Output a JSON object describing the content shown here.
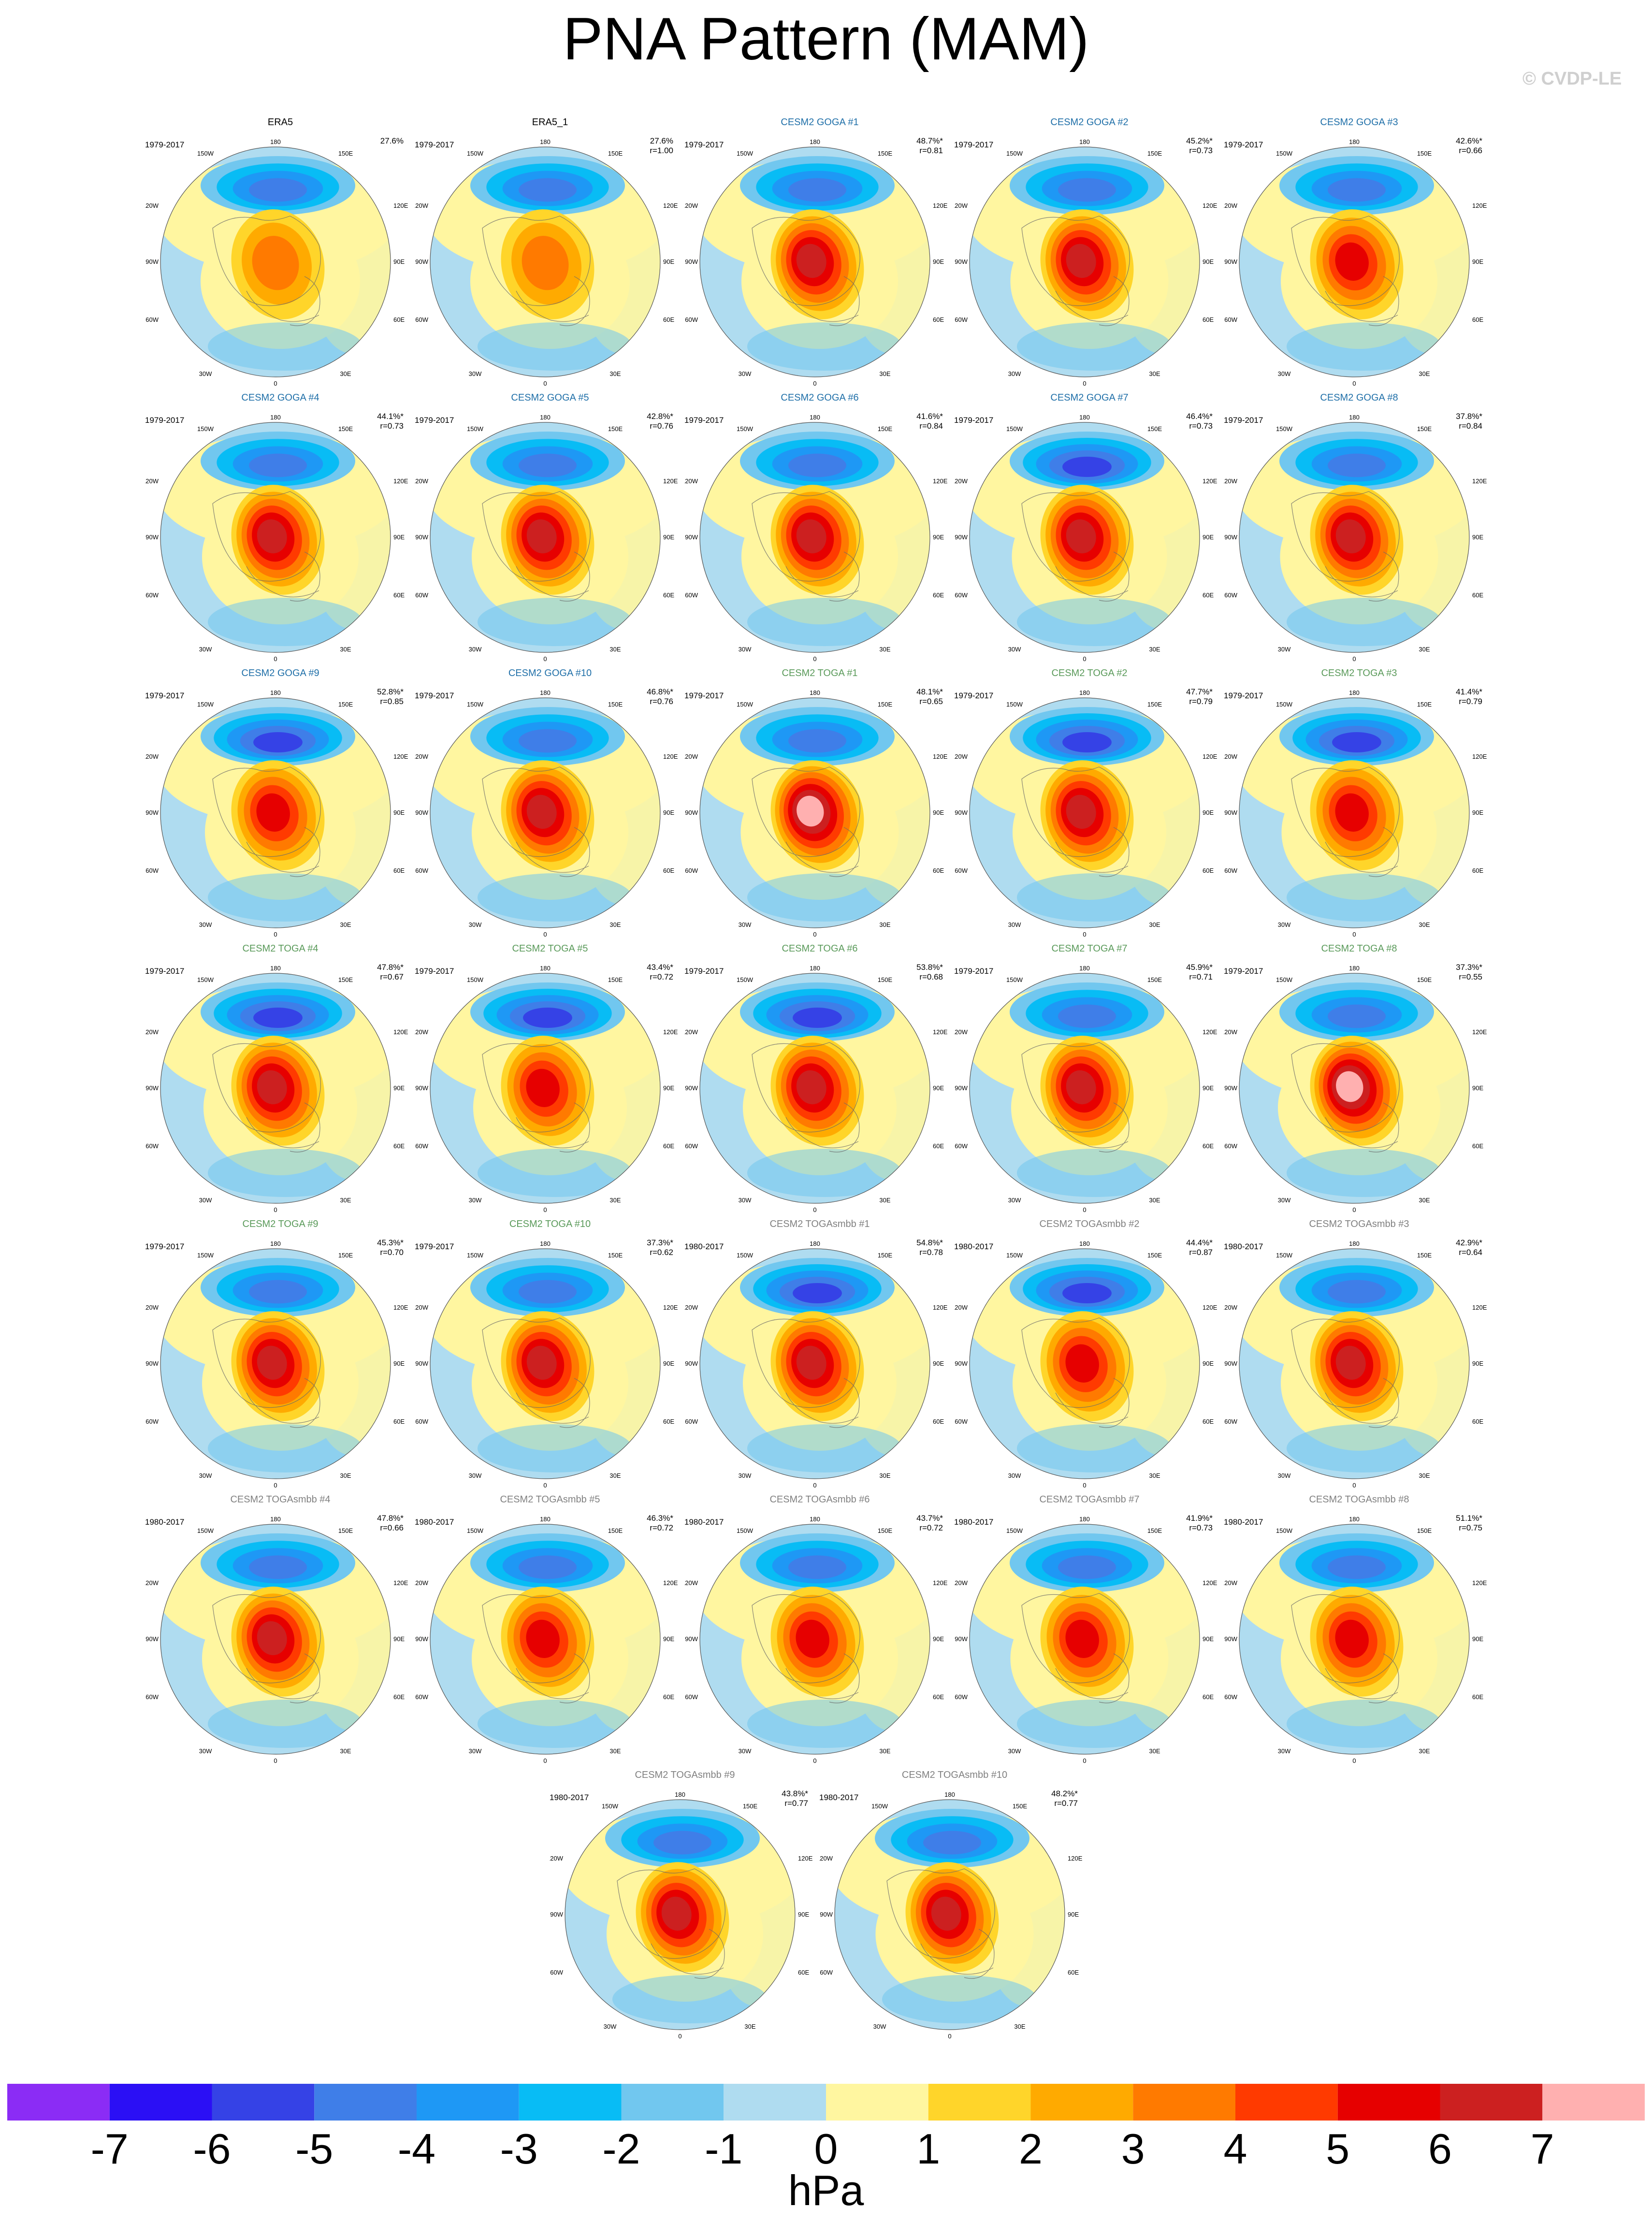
{
  "title": "PNA Pattern (MAM)",
  "credit": "© CVDP-LE",
  "map_labels": {
    "top": "180",
    "left_upper": "150W",
    "right_upper": "150E",
    "left_mid": "120W",
    "right_mid": "120E",
    "left": "90W",
    "right": "90E",
    "left_lower": "60W",
    "right_lower": "60E",
    "bottom_left": "30W",
    "bottom_right": "30E",
    "bottom": "0"
  },
  "panels": [
    {
      "title": "ERA5",
      "color": "#000000",
      "years": "1979-2017",
      "pct": "27.6%",
      "r": "",
      "int": 0.1,
      "neg": 0.5,
      "pos": 0.25
    },
    {
      "title": "ERA5_1",
      "color": "#000000",
      "years": "1979-2017",
      "pct": "27.6%",
      "r": "r=1.00",
      "int": 0.1,
      "neg": 0.5,
      "pos": 0.25
    },
    {
      "title": "CESM2 GOGA #1",
      "color": "#1f6fa8",
      "years": "1979-2017",
      "pct": "48.7%*",
      "r": "r=0.81",
      "int": 0.55,
      "neg": 0.6,
      "pos": 0.8
    },
    {
      "title": "CESM2 GOGA #2",
      "color": "#1f6fa8",
      "years": "1979-2017",
      "pct": "45.2%*",
      "r": "r=0.73",
      "int": 0.5,
      "neg": 0.55,
      "pos": 0.8
    },
    {
      "title": "CESM2 GOGA #3",
      "color": "#1f6fa8",
      "years": "1979-2017",
      "pct": "42.6%*",
      "r": "r=0.66",
      "int": 0.45,
      "neg": 0.6,
      "pos": 0.7
    },
    {
      "title": "CESM2 GOGA #4",
      "color": "#1f6fa8",
      "years": "1979-2017",
      "pct": "44.1%*",
      "r": "r=0.73",
      "int": 0.62,
      "neg": 0.6,
      "pos": 0.9
    },
    {
      "title": "CESM2 GOGA #5",
      "color": "#1f6fa8",
      "years": "1979-2017",
      "pct": "42.8%*",
      "r": "r=0.76",
      "int": 0.55,
      "neg": 0.6,
      "pos": 0.85
    },
    {
      "title": "CESM2 GOGA #6",
      "color": "#1f6fa8",
      "years": "1979-2017",
      "pct": "41.6%*",
      "r": "r=0.84",
      "int": 0.5,
      "neg": 0.6,
      "pos": 0.8
    },
    {
      "title": "CESM2 GOGA #7",
      "color": "#1f6fa8",
      "years": "1979-2017",
      "pct": "46.4%*",
      "r": "r=0.73",
      "int": 0.52,
      "neg": 0.65,
      "pos": 0.8
    },
    {
      "title": "CESM2 GOGA #8",
      "color": "#1f6fa8",
      "years": "1979-2017",
      "pct": "37.8%*",
      "r": "r=0.84",
      "int": 0.48,
      "neg": 0.55,
      "pos": 0.75
    },
    {
      "title": "CESM2 GOGA #9",
      "color": "#1f6fa8",
      "years": "1979-2017",
      "pct": "52.8%*",
      "r": "r=0.85",
      "int": 0.55,
      "neg": 0.8,
      "pos": 0.7
    },
    {
      "title": "CESM2 GOGA #10",
      "color": "#1f6fa8",
      "years": "1979-2017",
      "pct": "46.8%*",
      "r": "r=0.76",
      "int": 0.52,
      "neg": 0.6,
      "pos": 0.75
    },
    {
      "title": "CESM2 TOGA #1",
      "color": "#5a9a5a",
      "years": "1979-2017",
      "pct": "48.1%*",
      "r": "r=0.65",
      "int": 0.75,
      "neg": 0.55,
      "pos": 1.0
    },
    {
      "title": "CESM2 TOGA #2",
      "color": "#5a9a5a",
      "years": "1979-2017",
      "pct": "47.7%*",
      "r": "r=0.79",
      "int": 0.52,
      "neg": 0.7,
      "pos": 0.75
    },
    {
      "title": "CESM2 TOGA #3",
      "color": "#5a9a5a",
      "years": "1979-2017",
      "pct": "41.4%*",
      "r": "r=0.79",
      "int": 0.45,
      "neg": 0.65,
      "pos": 0.7
    },
    {
      "title": "CESM2 TOGA #4",
      "color": "#5a9a5a",
      "years": "1979-2017",
      "pct": "47.8%*",
      "r": "r=0.67",
      "int": 0.6,
      "neg": 0.7,
      "pos": 0.85
    },
    {
      "title": "CESM2 TOGA #5",
      "color": "#5a9a5a",
      "years": "1979-2017",
      "pct": "43.4%*",
      "r": "r=0.72",
      "int": 0.45,
      "neg": 0.7,
      "pos": 0.7
    },
    {
      "title": "CESM2 TOGA #6",
      "color": "#5a9a5a",
      "years": "1979-2017",
      "pct": "53.8%*",
      "r": "r=0.68",
      "int": 0.6,
      "neg": 0.7,
      "pos": 0.85
    },
    {
      "title": "CESM2 TOGA #7",
      "color": "#5a9a5a",
      "years": "1979-2017",
      "pct": "45.9%*",
      "r": "r=0.71",
      "int": 0.62,
      "neg": 0.6,
      "pos": 0.9
    },
    {
      "title": "CESM2 TOGA #8",
      "color": "#5a9a5a",
      "years": "1979-2017",
      "pct": "37.3%*",
      "r": "r=0.55",
      "int": 0.78,
      "neg": 0.4,
      "pos": 1.0
    },
    {
      "title": "CESM2 TOGA #9",
      "color": "#5a9a5a",
      "years": "1979-2017",
      "pct": "45.3%*",
      "r": "r=0.70",
      "int": 0.58,
      "neg": 0.6,
      "pos": 0.85
    },
    {
      "title": "CESM2 TOGA #10",
      "color": "#5a9a5a",
      "years": "1979-2017",
      "pct": "37.3%*",
      "r": "r=0.62",
      "int": 0.55,
      "neg": 0.6,
      "pos": 0.8
    },
    {
      "title": "CESM2 TOGAsmbb #1",
      "color": "#808080",
      "years": "1980-2017",
      "pct": "54.8%*",
      "r": "r=0.78",
      "int": 0.58,
      "neg": 0.7,
      "pos": 0.85
    },
    {
      "title": "CESM2 TOGAsmbb #2",
      "color": "#808080",
      "years": "1980-2017",
      "pct": "44.4%*",
      "r": "r=0.87",
      "int": 0.5,
      "neg": 0.7,
      "pos": 0.7
    },
    {
      "title": "CESM2 TOGAsmbb #3",
      "color": "#808080",
      "years": "1980-2017",
      "pct": "42.9%*",
      "r": "r=0.64",
      "int": 0.55,
      "neg": 0.6,
      "pos": 0.8
    },
    {
      "title": "CESM2 TOGAsmbb #4",
      "color": "#808080",
      "years": "1980-2017",
      "pct": "47.8%*",
      "r": "r=0.66",
      "int": 0.62,
      "neg": 0.6,
      "pos": 0.9
    },
    {
      "title": "CESM2 TOGAsmbb #5",
      "color": "#808080",
      "years": "1980-2017",
      "pct": "46.3%*",
      "r": "r=0.72",
      "int": 0.48,
      "neg": 0.6,
      "pos": 0.7
    },
    {
      "title": "CESM2 TOGAsmbb #6",
      "color": "#808080",
      "years": "1980-2017",
      "pct": "43.7%*",
      "r": "r=0.72",
      "int": 0.48,
      "neg": 0.6,
      "pos": 0.7
    },
    {
      "title": "CESM2 TOGAsmbb #7",
      "color": "#808080",
      "years": "1980-2017",
      "pct": "41.9%*",
      "r": "r=0.73",
      "int": 0.42,
      "neg": 0.55,
      "pos": 0.6
    },
    {
      "title": "CESM2 TOGAsmbb #8",
      "color": "#808080",
      "years": "1980-2017",
      "pct": "51.1%*",
      "r": "r=0.75",
      "int": 0.45,
      "neg": 0.6,
      "pos": 0.7
    },
    {
      "title": "CESM2 TOGAsmbb #9",
      "color": "#808080",
      "years": "1980-2017",
      "pct": "43.8%*",
      "r": "r=0.77",
      "int": 0.5,
      "neg": 0.6,
      "pos": 0.75
    },
    {
      "title": "CESM2 TOGAsmbb #10",
      "color": "#808080",
      "years": "1980-2017",
      "pct": "48.2%*",
      "r": "r=0.77",
      "int": 0.55,
      "neg": 0.55,
      "pos": 0.8
    }
  ],
  "colorbar": {
    "colors": [
      "#8b2cf5",
      "#2b0ff5",
      "#3542e6",
      "#3f7ee8",
      "#1e98f5",
      "#08bcf5",
      "#71c7ef",
      "#afdcf0",
      "#fff6a0",
      "#ffd52a",
      "#ffaa00",
      "#ff7a00",
      "#ff3a00",
      "#e60000",
      "#cc2020",
      "#ffb0b0"
    ],
    "ticks": [
      "-7",
      "-6",
      "-5",
      "-4",
      "-3",
      "-2",
      "-1",
      "0",
      "1",
      "2",
      "3",
      "4",
      "5",
      "6",
      "7"
    ],
    "units": "hPa"
  }
}
